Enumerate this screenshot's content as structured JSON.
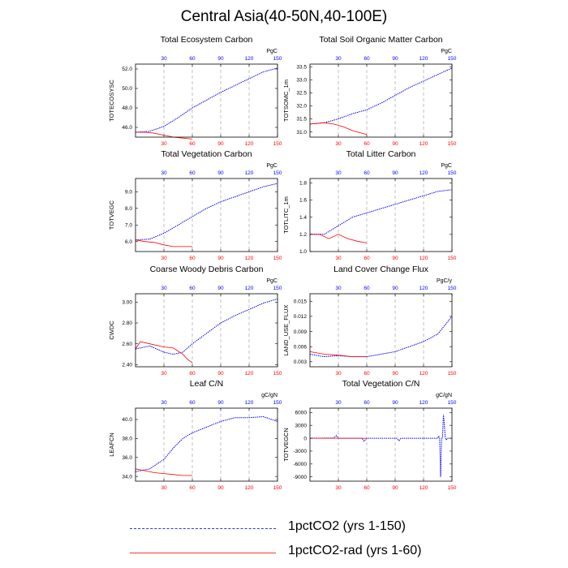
{
  "figure": {
    "title": "Central Asia(40-50N,40-100E)",
    "legend": [
      {
        "label": "1pctCO2 (yrs 1-150)",
        "color": "#3333cc",
        "dashed": true
      },
      {
        "label": "1pctCO2-rad (yrs 1-60)",
        "color": "#ff3333",
        "dashed": false
      }
    ]
  },
  "chart_data": [
    {
      "type": "line",
      "title": "Total Ecosystem Carbon",
      "ylabel": "TOTECOSYSC",
      "units": "PgC",
      "xlim": [
        0,
        150
      ],
      "ylim": [
        45.0,
        52.5
      ],
      "xticks": [
        30,
        60,
        90,
        120,
        150
      ],
      "yticks": [
        46.0,
        48.0,
        50.0,
        52.0
      ],
      "ytick_decimals": 1,
      "series": [
        {
          "color": "#0000ff",
          "points": [
            [
              0,
              45.5
            ],
            [
              15,
              45.6
            ],
            [
              30,
              46.1
            ],
            [
              45,
              47.0
            ],
            [
              60,
              48.0
            ],
            [
              75,
              48.8
            ],
            [
              90,
              49.6
            ],
            [
              105,
              50.3
            ],
            [
              120,
              51.0
            ],
            [
              135,
              51.7
            ],
            [
              150,
              52.1
            ]
          ]
        },
        {
          "color": "#ff0000",
          "points": [
            [
              0,
              45.5
            ],
            [
              10,
              45.5
            ],
            [
              20,
              45.4
            ],
            [
              30,
              45.2
            ],
            [
              40,
              45.0
            ],
            [
              50,
              44.9
            ],
            [
              60,
              44.8
            ]
          ]
        }
      ]
    },
    {
      "type": "line",
      "title": "Total Soil Organic Matter Carbon",
      "ylabel": "TOTSOMC_1m",
      "units": "PgC",
      "xlim": [
        0,
        150
      ],
      "ylim": [
        30.8,
        33.6
      ],
      "xticks": [
        30,
        60,
        90,
        120,
        150
      ],
      "yticks": [
        31.0,
        31.5,
        32.0,
        32.5,
        33.0,
        33.5
      ],
      "ytick_decimals": 1,
      "series": [
        {
          "color": "#0000ff",
          "points": [
            [
              0,
              31.3
            ],
            [
              15,
              31.35
            ],
            [
              30,
              31.5
            ],
            [
              45,
              31.7
            ],
            [
              60,
              31.85
            ],
            [
              75,
              32.1
            ],
            [
              90,
              32.4
            ],
            [
              105,
              32.7
            ],
            [
              120,
              32.95
            ],
            [
              135,
              33.2
            ],
            [
              150,
              33.45
            ]
          ]
        },
        {
          "color": "#ff0000",
          "points": [
            [
              0,
              31.3
            ],
            [
              15,
              31.35
            ],
            [
              25,
              31.3
            ],
            [
              35,
              31.2
            ],
            [
              45,
              31.05
            ],
            [
              55,
              30.95
            ],
            [
              60,
              30.9
            ]
          ]
        }
      ]
    },
    {
      "type": "line",
      "title": "Total Vegetation Carbon",
      "ylabel": "TOTVEGC",
      "units": "PgC",
      "xlim": [
        0,
        150
      ],
      "ylim": [
        5.4,
        9.8
      ],
      "xticks": [
        30,
        60,
        90,
        120,
        150
      ],
      "yticks": [
        6.0,
        7.0,
        8.0,
        9.0
      ],
      "ytick_decimals": 1,
      "series": [
        {
          "color": "#0000ff",
          "points": [
            [
              0,
              6.1
            ],
            [
              15,
              6.15
            ],
            [
              30,
              6.5
            ],
            [
              45,
              7.0
            ],
            [
              60,
              7.5
            ],
            [
              75,
              8.0
            ],
            [
              90,
              8.4
            ],
            [
              105,
              8.7
            ],
            [
              120,
              9.0
            ],
            [
              135,
              9.3
            ],
            [
              150,
              9.5
            ]
          ]
        },
        {
          "color": "#ff0000",
          "points": [
            [
              0,
              6.1
            ],
            [
              10,
              6.0
            ],
            [
              20,
              5.95
            ],
            [
              30,
              5.8
            ],
            [
              40,
              5.7
            ],
            [
              50,
              5.7
            ],
            [
              60,
              5.7
            ]
          ]
        }
      ]
    },
    {
      "type": "line",
      "title": "Total Litter Carbon",
      "ylabel": "TOTLITC_1m",
      "units": "PgC",
      "xlim": [
        0,
        150
      ],
      "ylim": [
        1.0,
        1.85
      ],
      "xticks": [
        30,
        60,
        90,
        120,
        150
      ],
      "yticks": [
        1.0,
        1.2,
        1.4,
        1.6,
        1.8
      ],
      "ytick_decimals": 1,
      "series": [
        {
          "color": "#0000ff",
          "points": [
            [
              0,
              1.2
            ],
            [
              15,
              1.2
            ],
            [
              30,
              1.3
            ],
            [
              45,
              1.4
            ],
            [
              60,
              1.45
            ],
            [
              75,
              1.5
            ],
            [
              90,
              1.55
            ],
            [
              105,
              1.6
            ],
            [
              120,
              1.65
            ],
            [
              135,
              1.7
            ],
            [
              150,
              1.72
            ]
          ]
        },
        {
          "color": "#ff0000",
          "points": [
            [
              0,
              1.2
            ],
            [
              10,
              1.2
            ],
            [
              20,
              1.15
            ],
            [
              30,
              1.2
            ],
            [
              40,
              1.15
            ],
            [
              50,
              1.12
            ],
            [
              60,
              1.1
            ]
          ]
        }
      ]
    },
    {
      "type": "line",
      "title": "Coarse Woody Debris Carbon",
      "ylabel": "CWDC",
      "units": "PgC",
      "xlim": [
        0,
        150
      ],
      "ylim": [
        2.38,
        3.08
      ],
      "xticks": [
        30,
        60,
        90,
        120,
        150
      ],
      "yticks": [
        2.4,
        2.6,
        2.8,
        3.0
      ],
      "ytick_decimals": 2,
      "series": [
        {
          "color": "#0000ff",
          "points": [
            [
              0,
              2.55
            ],
            [
              15,
              2.58
            ],
            [
              30,
              2.52
            ],
            [
              40,
              2.5
            ],
            [
              50,
              2.52
            ],
            [
              60,
              2.6
            ],
            [
              75,
              2.7
            ],
            [
              90,
              2.8
            ],
            [
              105,
              2.87
            ],
            [
              120,
              2.93
            ],
            [
              135,
              2.99
            ],
            [
              150,
              3.03
            ]
          ]
        },
        {
          "color": "#ff0000",
          "points": [
            [
              0,
              2.55
            ],
            [
              5,
              2.62
            ],
            [
              15,
              2.6
            ],
            [
              30,
              2.57
            ],
            [
              40,
              2.56
            ],
            [
              50,
              2.5
            ],
            [
              55,
              2.45
            ],
            [
              60,
              2.42
            ]
          ]
        }
      ]
    },
    {
      "type": "line",
      "title": "Land Cover Change Flux",
      "ylabel": "LAND_USE_FLUX",
      "units": "PgC/y",
      "xlim": [
        0,
        150
      ],
      "ylim": [
        0.002,
        0.0165
      ],
      "xticks": [
        30,
        60,
        90,
        120,
        150
      ],
      "yticks": [
        0.003,
        0.006,
        0.009,
        0.012,
        0.015
      ],
      "ytick_decimals": 3,
      "series": [
        {
          "color": "#0000ff",
          "points": [
            [
              0,
              0.0045
            ],
            [
              15,
              0.004
            ],
            [
              30,
              0.0042
            ],
            [
              45,
              0.004
            ],
            [
              60,
              0.004
            ],
            [
              75,
              0.0045
            ],
            [
              90,
              0.005
            ],
            [
              105,
              0.006
            ],
            [
              120,
              0.007
            ],
            [
              135,
              0.0085
            ],
            [
              150,
              0.012
            ]
          ]
        },
        {
          "color": "#ff0000",
          "points": [
            [
              0,
              0.005
            ],
            [
              15,
              0.0045
            ],
            [
              30,
              0.0043
            ],
            [
              45,
              0.004
            ],
            [
              60,
              0.004
            ]
          ]
        }
      ]
    },
    {
      "type": "line",
      "title": "Leaf C/N",
      "ylabel": "LEAFCN",
      "units": "gC/gN",
      "xlim": [
        0,
        150
      ],
      "ylim": [
        33.5,
        41.2
      ],
      "xticks": [
        30,
        60,
        90,
        120,
        150
      ],
      "yticks": [
        34.0,
        36.0,
        38.0,
        40.0
      ],
      "ytick_decimals": 1,
      "series": [
        {
          "color": "#0000ff",
          "points": [
            [
              0,
              34.5
            ],
            [
              15,
              34.8
            ],
            [
              30,
              35.8
            ],
            [
              40,
              37.0
            ],
            [
              50,
              38.0
            ],
            [
              60,
              38.6
            ],
            [
              75,
              39.2
            ],
            [
              90,
              39.8
            ],
            [
              105,
              40.2
            ],
            [
              120,
              40.2
            ],
            [
              135,
              40.3
            ],
            [
              150,
              39.8
            ]
          ]
        },
        {
          "color": "#ff0000",
          "points": [
            [
              0,
              34.8
            ],
            [
              10,
              34.6
            ],
            [
              20,
              34.4
            ],
            [
              30,
              34.3
            ],
            [
              40,
              34.2
            ],
            [
              50,
              34.1
            ],
            [
              60,
              34.1
            ]
          ]
        }
      ]
    },
    {
      "type": "line",
      "title": "Total Vegetation C/N",
      "ylabel": "TOTVEGCN",
      "units": "gC/gN",
      "xlim": [
        0,
        150
      ],
      "ylim": [
        -10000,
        7000
      ],
      "xticks": [
        30,
        60,
        90,
        120,
        150
      ],
      "yticks": [
        -9000,
        -6000,
        -3000,
        0,
        3000,
        6000
      ],
      "ytick_decimals": 0,
      "series": [
        {
          "color": "#0000ff",
          "points": [
            [
              0,
              0
            ],
            [
              25,
              50
            ],
            [
              28,
              600
            ],
            [
              30,
              0
            ],
            [
              55,
              0
            ],
            [
              57,
              -700
            ],
            [
              60,
              0
            ],
            [
              92,
              0
            ],
            [
              94,
              -600
            ],
            [
              96,
              0
            ],
            [
              135,
              0
            ],
            [
              136,
              500
            ],
            [
              137,
              -100
            ],
            [
              138,
              -9000
            ],
            [
              139,
              0
            ],
            [
              140,
              0
            ],
            [
              141,
              5500
            ],
            [
              142,
              3000
            ],
            [
              143,
              100
            ],
            [
              144,
              -400
            ],
            [
              145,
              0
            ],
            [
              150,
              0
            ]
          ]
        },
        {
          "color": "#ff0000",
          "points": [
            [
              0,
              0
            ],
            [
              60,
              0
            ]
          ]
        }
      ]
    }
  ]
}
